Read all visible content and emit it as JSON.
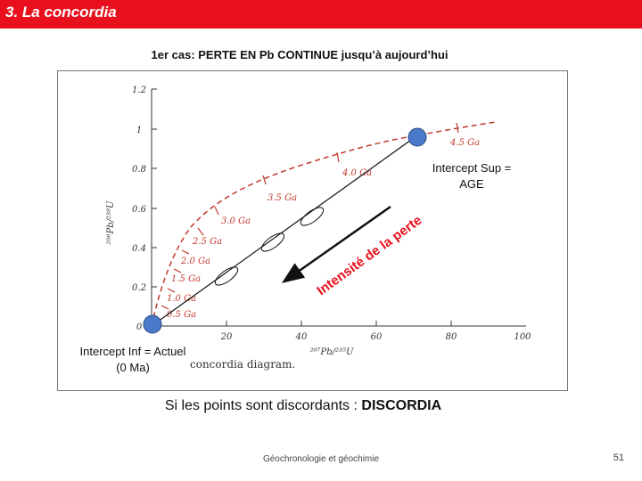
{
  "header": {
    "title": "3. La concordia",
    "title_bg": "#e8101c"
  },
  "subtitle": "1er cas: PERTE EN Pb CONTINUE jusqu’à aujourd’hui",
  "diagram": {
    "y_axis_label": "²⁰⁶Pb/²³⁸U",
    "x_axis_label": "²⁰⁷Pb/²³⁵U",
    "y_ticks": [
      "0",
      "0.2",
      "0.4",
      "0.6",
      "0.8",
      "1",
      "1.2"
    ],
    "x_ticks": [
      "20",
      "40",
      "60",
      "80",
      "100"
    ],
    "caption": "concordia diagram.",
    "age_labels": [
      "0.5 Ga",
      "1.0 Ga",
      "1.5 Ga",
      "2.0 Ga",
      "2.5 Ga",
      "3.0 Ga",
      "3.5 Ga",
      "4.0 Ga",
      "4.5 Ga"
    ],
    "arrow_label": "Intensité de la perte",
    "curve_color": "#c0392b",
    "point_color": "#4a7ac9",
    "arrow_color": "#e8101c"
  },
  "intercepts": {
    "upper": "Intercept Sup = AGE",
    "lower": "Intercept Inf = Actuel (0 Ma)"
  },
  "conclusion": {
    "prefix": "Si les points sont discordants : ",
    "emphasis": "DISCORDIA"
  },
  "footer": {
    "course": "Géochronologie et géochimie",
    "page_number": "51"
  }
}
